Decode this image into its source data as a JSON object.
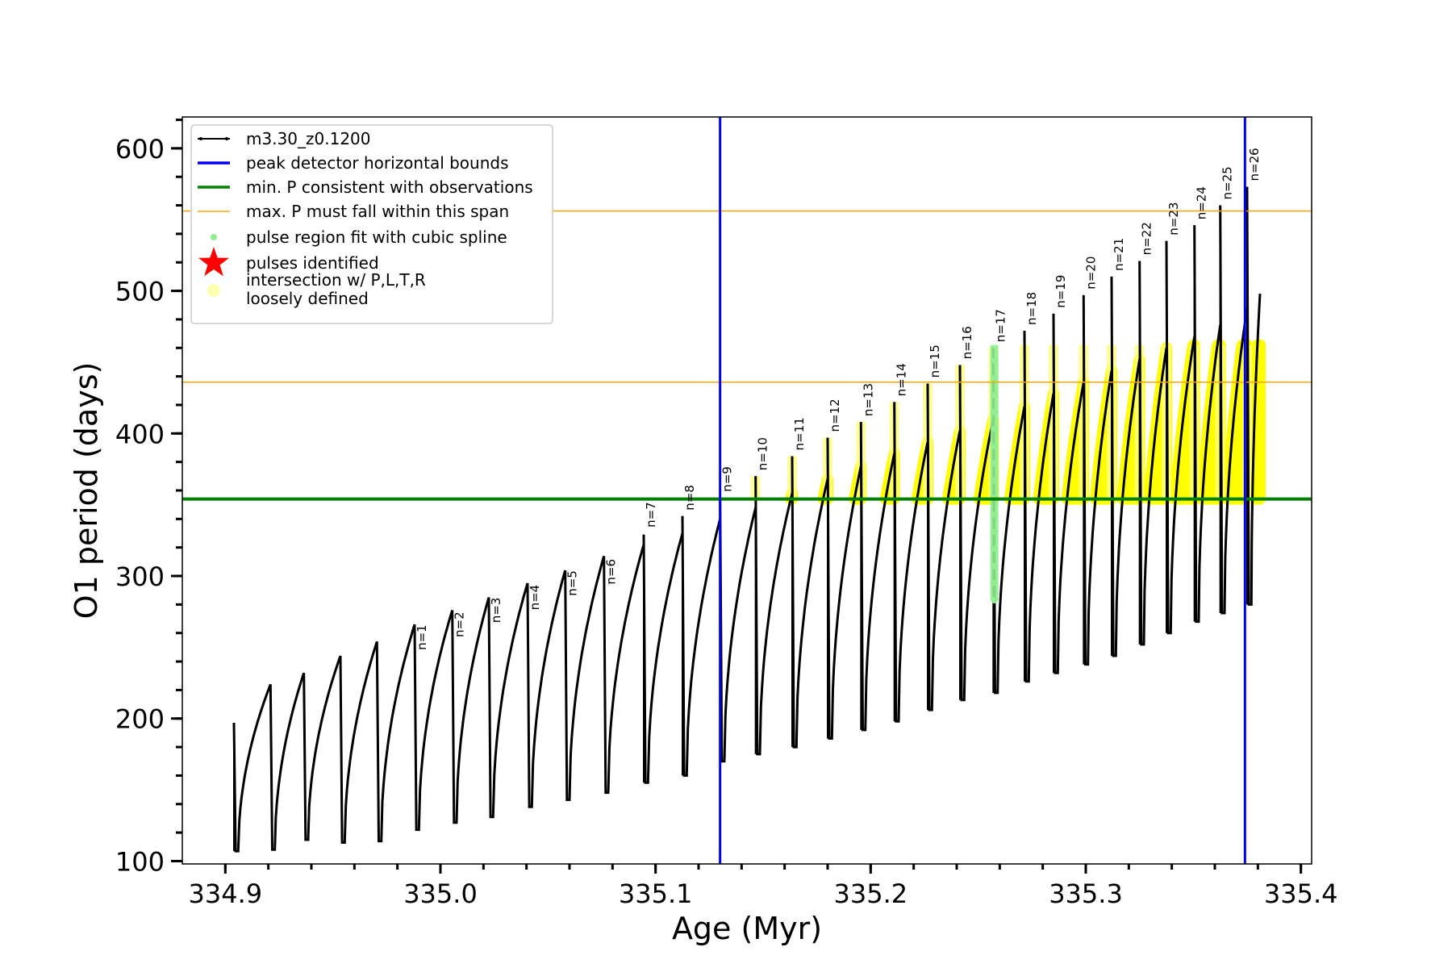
{
  "chart_data": {
    "type": "line",
    "title": "",
    "xlabel": "Age (Myr)",
    "ylabel": "O1 period (days)",
    "xlim": [
      334.88,
      335.405
    ],
    "ylim": [
      98,
      622
    ],
    "x_ticks": [
      {
        "value": 334.9,
        "label": "334.9"
      },
      {
        "value": 335.0,
        "label": "335.0"
      },
      {
        "value": 335.1,
        "label": "335.1"
      },
      {
        "value": 335.2,
        "label": "335.2"
      },
      {
        "value": 335.3,
        "label": "335.3"
      },
      {
        "value": 335.4,
        "label": "335.4"
      }
    ],
    "y_ticks": [
      {
        "value": 100,
        "label": "100"
      },
      {
        "value": 200,
        "label": "200"
      },
      {
        "value": 300,
        "label": "300"
      },
      {
        "value": 400,
        "label": "400"
      },
      {
        "value": 500,
        "label": "500"
      },
      {
        "value": 600,
        "label": "600"
      }
    ],
    "grid": false,
    "legend_position": "top-left",
    "legend": [
      {
        "label": "m3.30_z0.1200",
        "kind": "line-marker",
        "color": "#000000"
      },
      {
        "label": "peak detector horizontal bounds",
        "kind": "line",
        "color": "#0000ee"
      },
      {
        "label": "min. P consistent with observations",
        "kind": "line",
        "color": "#007f00"
      },
      {
        "label": "max. P must fall within this span",
        "kind": "line",
        "color": "#ffa500"
      },
      {
        "label": "pulse region fit with cubic spline",
        "kind": "dot",
        "color": "#90ee90"
      },
      {
        "label": "pulses identified",
        "kind": "star",
        "color": "#ff0000"
      },
      {
        "label": "intersection w/ P,L,T,R",
        "label2": "loosely defined",
        "kind": "dot",
        "color": "#ffffb0"
      }
    ],
    "vertical_lines": [
      {
        "x": 335.13,
        "color": "#0000ee",
        "name": "peak detector horizontal bounds"
      },
      {
        "x": 335.374,
        "color": "#0000ee",
        "name": "peak detector horizontal bounds"
      }
    ],
    "horizontal_lines": [
      {
        "y": 354,
        "color": "#007f00",
        "name": "min. P consistent with observations"
      },
      {
        "y": 436,
        "color": "#ffa500",
        "name": "max. P span lower"
      },
      {
        "y": 556,
        "color": "#ffa500",
        "name": "max. P span upper"
      }
    ],
    "pulses": [
      {
        "n": "",
        "start": 334.904,
        "end": 334.921,
        "min": 107,
        "max": 224,
        "spike": 197
      },
      {
        "n": "",
        "start": 334.921,
        "end": 334.9365,
        "min": 108,
        "max": 232,
        "spike": 0
      },
      {
        "n": "",
        "start": 334.9365,
        "end": 334.9535,
        "min": 115,
        "max": 244,
        "spike": 0
      },
      {
        "n": "",
        "start": 334.9535,
        "end": 334.9705,
        "min": 113,
        "max": 254,
        "spike": 0
      },
      {
        "n": "",
        "start": 334.9705,
        "end": 334.988,
        "min": 114,
        "max": 266,
        "spike": 0
      },
      {
        "n": "n=1",
        "start": 334.988,
        "end": 335.0055,
        "min": 122,
        "max": 276,
        "spike": 0
      },
      {
        "n": "n=2",
        "start": 335.0055,
        "end": 335.0225,
        "min": 127,
        "max": 285,
        "spike": 0
      },
      {
        "n": "n=3",
        "start": 335.0225,
        "end": 335.0405,
        "min": 131,
        "max": 295,
        "spike": 0
      },
      {
        "n": "n=4",
        "start": 335.0405,
        "end": 335.058,
        "min": 138,
        "max": 304,
        "spike": 0
      },
      {
        "n": "n=5",
        "start": 335.058,
        "end": 335.076,
        "min": 143,
        "max": 314,
        "spike": 0
      },
      {
        "n": "n=6",
        "start": 335.076,
        "end": 335.0945,
        "min": 148,
        "max": 322,
        "spike": 0
      },
      {
        "n": "n=7",
        "start": 335.0945,
        "end": 335.1125,
        "min": 155,
        "max": 330,
        "spike": 329
      },
      {
        "n": "n=8",
        "start": 335.1125,
        "end": 335.13,
        "min": 160,
        "max": 340,
        "spike": 342
      },
      {
        "n": "n=9",
        "start": 335.13,
        "end": 335.1465,
        "min": 170,
        "max": 348,
        "spike": 355
      },
      {
        "n": "n=10",
        "start": 335.1465,
        "end": 335.1635,
        "min": 175,
        "max": 358,
        "spike": 370
      },
      {
        "n": "n=11",
        "start": 335.1635,
        "end": 335.18,
        "min": 180,
        "max": 368,
        "spike": 384
      },
      {
        "n": "n=12",
        "start": 335.18,
        "end": 335.1955,
        "min": 186,
        "max": 377,
        "spike": 397
      },
      {
        "n": "n=13",
        "start": 335.1955,
        "end": 335.211,
        "min": 192,
        "max": 386,
        "spike": 408
      },
      {
        "n": "n=14",
        "start": 335.211,
        "end": 335.2265,
        "min": 198,
        "max": 394,
        "spike": 422
      },
      {
        "n": "n=15",
        "start": 335.2265,
        "end": 335.2415,
        "min": 206,
        "max": 402,
        "spike": 435
      },
      {
        "n": "n=16",
        "start": 335.2415,
        "end": 335.257,
        "min": 213,
        "max": 410,
        "spike": 448
      },
      {
        "n": "n=17",
        "start": 335.257,
        "end": 335.2715,
        "min": 218,
        "max": 419,
        "spike": 460
      },
      {
        "n": "n=18",
        "start": 335.2715,
        "end": 335.285,
        "min": 226,
        "max": 428,
        "spike": 472
      },
      {
        "n": "n=19",
        "start": 335.285,
        "end": 335.299,
        "min": 232,
        "max": 436,
        "spike": 484
      },
      {
        "n": "n=20",
        "start": 335.299,
        "end": 335.312,
        "min": 238,
        "max": 444,
        "spike": 497
      },
      {
        "n": "n=21",
        "start": 335.312,
        "end": 335.325,
        "min": 244,
        "max": 452,
        "spike": 510
      },
      {
        "n": "n=22",
        "start": 335.325,
        "end": 335.3375,
        "min": 252,
        "max": 460,
        "spike": 521
      },
      {
        "n": "n=23",
        "start": 335.3375,
        "end": 335.3505,
        "min": 260,
        "max": 468,
        "spike": 535
      },
      {
        "n": "n=24",
        "start": 335.3505,
        "end": 335.3625,
        "min": 268,
        "max": 476,
        "spike": 546
      },
      {
        "n": "n=25",
        "start": 335.3625,
        "end": 335.375,
        "min": 274,
        "max": 488,
        "spike": 560
      },
      {
        "n": "n=26",
        "start": 335.375,
        "end": 335.381,
        "min": 280,
        "max": 498,
        "spike": 573
      }
    ],
    "spline_region": {
      "x": 335.2575,
      "ymin": 283,
      "ymax": 462,
      "color": "#90ee90"
    },
    "intersection_threshold": 354,
    "intersection_cap": 462
  }
}
